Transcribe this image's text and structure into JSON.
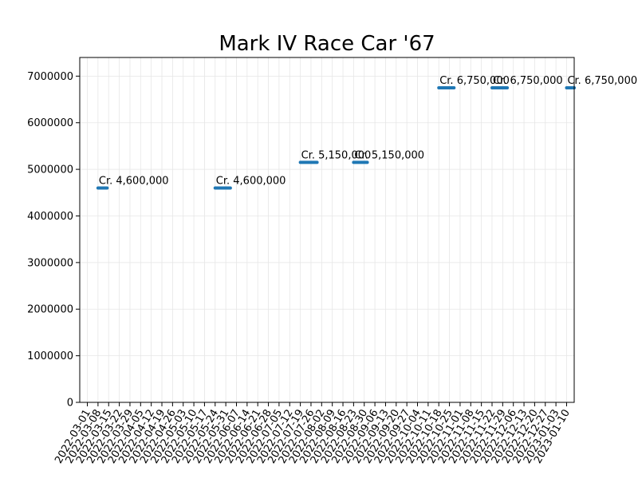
{
  "chart_data": {
    "type": "line",
    "title": "Mark IV Race Car '67",
    "xlabel": "",
    "ylabel": "",
    "ylim": [
      0,
      7400000
    ],
    "yticks": [
      0,
      1000000,
      2000000,
      3000000,
      4000000,
      5000000,
      6000000,
      7000000
    ],
    "ytick_labels": [
      "0",
      "1000000",
      "2000000",
      "3000000",
      "4000000",
      "5000000",
      "6000000",
      "7000000"
    ],
    "xlim": [
      "2022-02-24",
      "2023-01-15"
    ],
    "xticks": [
      "2022-03-01",
      "2022-03-08",
      "2022-03-15",
      "2022-03-22",
      "2022-03-29",
      "2022-04-05",
      "2022-04-12",
      "2022-04-19",
      "2022-04-26",
      "2022-05-03",
      "2022-05-10",
      "2022-05-17",
      "2022-05-24",
      "2022-05-31",
      "2022-06-07",
      "2022-06-14",
      "2022-06-21",
      "2022-06-28",
      "2022-07-05",
      "2022-07-12",
      "2022-07-19",
      "2022-07-26",
      "2022-08-02",
      "2022-08-09",
      "2022-08-16",
      "2022-08-23",
      "2022-08-30",
      "2022-09-06",
      "2022-09-13",
      "2022-09-20",
      "2022-09-27",
      "2022-10-04",
      "2022-10-11",
      "2022-10-18",
      "2022-10-25",
      "2022-11-01",
      "2022-11-08",
      "2022-11-15",
      "2022-11-22",
      "2022-11-29",
      "2022-12-06",
      "2022-12-13",
      "2022-12-20",
      "2022-12-27",
      "2023-01-03",
      "2023-01-10"
    ],
    "grid": true,
    "color": "#1f77b4",
    "segments": [
      {
        "start": "2022-03-08",
        "end": "2022-03-14",
        "value": 4600000,
        "label": "Cr. 4,600,000"
      },
      {
        "start": "2022-05-24",
        "end": "2022-06-03",
        "value": 4600000,
        "label": "Cr. 4,600,000"
      },
      {
        "start": "2022-07-19",
        "end": "2022-07-30",
        "value": 5150000,
        "label": "Cr. 5,150,000"
      },
      {
        "start": "2022-08-23",
        "end": "2022-09-01",
        "value": 5150000,
        "label": "Cr. 5,150,000"
      },
      {
        "start": "2022-10-18",
        "end": "2022-10-28",
        "value": 6750000,
        "label": "Cr. 6,750,000"
      },
      {
        "start": "2022-11-22",
        "end": "2022-12-02",
        "value": 6750000,
        "label": "Cr. 6,750,000"
      },
      {
        "start": "2023-01-10",
        "end": "2023-01-24",
        "value": 6750000,
        "label": "Cr. 6,750,000"
      }
    ]
  }
}
